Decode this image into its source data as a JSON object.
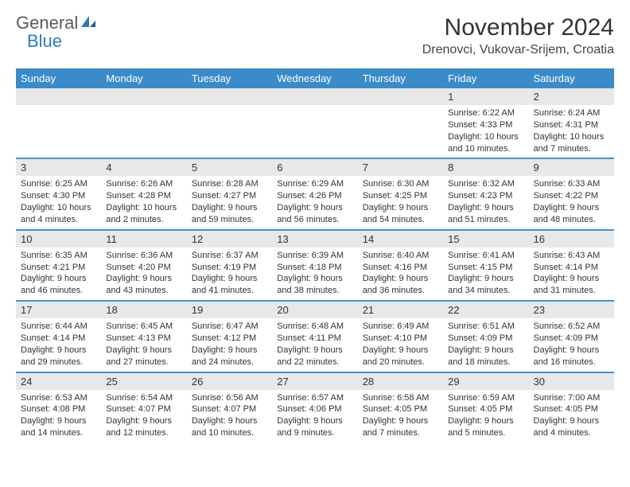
{
  "brand": {
    "word1": "General",
    "word2": "Blue"
  },
  "title": "November 2024",
  "location": "Drenovci, Vukovar-Srijem, Croatia",
  "colors": {
    "header_bg": "#3b8bc9",
    "header_text": "#ffffff",
    "daynum_bg": "#e8e8e8",
    "row_border": "#4a90c8",
    "body_text": "#333333",
    "logo_grey": "#5a5a5a",
    "logo_blue": "#2b7bbf"
  },
  "daysOfWeek": [
    "Sunday",
    "Monday",
    "Tuesday",
    "Wednesday",
    "Thursday",
    "Friday",
    "Saturday"
  ],
  "grid": [
    [
      null,
      null,
      null,
      null,
      null,
      {
        "n": "1",
        "sunrise": "Sunrise: 6:22 AM",
        "sunset": "Sunset: 4:33 PM",
        "daylight": "Daylight: 10 hours and 10 minutes."
      },
      {
        "n": "2",
        "sunrise": "Sunrise: 6:24 AM",
        "sunset": "Sunset: 4:31 PM",
        "daylight": "Daylight: 10 hours and 7 minutes."
      }
    ],
    [
      {
        "n": "3",
        "sunrise": "Sunrise: 6:25 AM",
        "sunset": "Sunset: 4:30 PM",
        "daylight": "Daylight: 10 hours and 4 minutes."
      },
      {
        "n": "4",
        "sunrise": "Sunrise: 6:26 AM",
        "sunset": "Sunset: 4:28 PM",
        "daylight": "Daylight: 10 hours and 2 minutes."
      },
      {
        "n": "5",
        "sunrise": "Sunrise: 6:28 AM",
        "sunset": "Sunset: 4:27 PM",
        "daylight": "Daylight: 9 hours and 59 minutes."
      },
      {
        "n": "6",
        "sunrise": "Sunrise: 6:29 AM",
        "sunset": "Sunset: 4:26 PM",
        "daylight": "Daylight: 9 hours and 56 minutes."
      },
      {
        "n": "7",
        "sunrise": "Sunrise: 6:30 AM",
        "sunset": "Sunset: 4:25 PM",
        "daylight": "Daylight: 9 hours and 54 minutes."
      },
      {
        "n": "8",
        "sunrise": "Sunrise: 6:32 AM",
        "sunset": "Sunset: 4:23 PM",
        "daylight": "Daylight: 9 hours and 51 minutes."
      },
      {
        "n": "9",
        "sunrise": "Sunrise: 6:33 AM",
        "sunset": "Sunset: 4:22 PM",
        "daylight": "Daylight: 9 hours and 48 minutes."
      }
    ],
    [
      {
        "n": "10",
        "sunrise": "Sunrise: 6:35 AM",
        "sunset": "Sunset: 4:21 PM",
        "daylight": "Daylight: 9 hours and 46 minutes."
      },
      {
        "n": "11",
        "sunrise": "Sunrise: 6:36 AM",
        "sunset": "Sunset: 4:20 PM",
        "daylight": "Daylight: 9 hours and 43 minutes."
      },
      {
        "n": "12",
        "sunrise": "Sunrise: 6:37 AM",
        "sunset": "Sunset: 4:19 PM",
        "daylight": "Daylight: 9 hours and 41 minutes."
      },
      {
        "n": "13",
        "sunrise": "Sunrise: 6:39 AM",
        "sunset": "Sunset: 4:18 PM",
        "daylight": "Daylight: 9 hours and 38 minutes."
      },
      {
        "n": "14",
        "sunrise": "Sunrise: 6:40 AM",
        "sunset": "Sunset: 4:16 PM",
        "daylight": "Daylight: 9 hours and 36 minutes."
      },
      {
        "n": "15",
        "sunrise": "Sunrise: 6:41 AM",
        "sunset": "Sunset: 4:15 PM",
        "daylight": "Daylight: 9 hours and 34 minutes."
      },
      {
        "n": "16",
        "sunrise": "Sunrise: 6:43 AM",
        "sunset": "Sunset: 4:14 PM",
        "daylight": "Daylight: 9 hours and 31 minutes."
      }
    ],
    [
      {
        "n": "17",
        "sunrise": "Sunrise: 6:44 AM",
        "sunset": "Sunset: 4:14 PM",
        "daylight": "Daylight: 9 hours and 29 minutes."
      },
      {
        "n": "18",
        "sunrise": "Sunrise: 6:45 AM",
        "sunset": "Sunset: 4:13 PM",
        "daylight": "Daylight: 9 hours and 27 minutes."
      },
      {
        "n": "19",
        "sunrise": "Sunrise: 6:47 AM",
        "sunset": "Sunset: 4:12 PM",
        "daylight": "Daylight: 9 hours and 24 minutes."
      },
      {
        "n": "20",
        "sunrise": "Sunrise: 6:48 AM",
        "sunset": "Sunset: 4:11 PM",
        "daylight": "Daylight: 9 hours and 22 minutes."
      },
      {
        "n": "21",
        "sunrise": "Sunrise: 6:49 AM",
        "sunset": "Sunset: 4:10 PM",
        "daylight": "Daylight: 9 hours and 20 minutes."
      },
      {
        "n": "22",
        "sunrise": "Sunrise: 6:51 AM",
        "sunset": "Sunset: 4:09 PM",
        "daylight": "Daylight: 9 hours and 18 minutes."
      },
      {
        "n": "23",
        "sunrise": "Sunrise: 6:52 AM",
        "sunset": "Sunset: 4:09 PM",
        "daylight": "Daylight: 9 hours and 16 minutes."
      }
    ],
    [
      {
        "n": "24",
        "sunrise": "Sunrise: 6:53 AM",
        "sunset": "Sunset: 4:08 PM",
        "daylight": "Daylight: 9 hours and 14 minutes."
      },
      {
        "n": "25",
        "sunrise": "Sunrise: 6:54 AM",
        "sunset": "Sunset: 4:07 PM",
        "daylight": "Daylight: 9 hours and 12 minutes."
      },
      {
        "n": "26",
        "sunrise": "Sunrise: 6:56 AM",
        "sunset": "Sunset: 4:07 PM",
        "daylight": "Daylight: 9 hours and 10 minutes."
      },
      {
        "n": "27",
        "sunrise": "Sunrise: 6:57 AM",
        "sunset": "Sunset: 4:06 PM",
        "daylight": "Daylight: 9 hours and 9 minutes."
      },
      {
        "n": "28",
        "sunrise": "Sunrise: 6:58 AM",
        "sunset": "Sunset: 4:05 PM",
        "daylight": "Daylight: 9 hours and 7 minutes."
      },
      {
        "n": "29",
        "sunrise": "Sunrise: 6:59 AM",
        "sunset": "Sunset: 4:05 PM",
        "daylight": "Daylight: 9 hours and 5 minutes."
      },
      {
        "n": "30",
        "sunrise": "Sunrise: 7:00 AM",
        "sunset": "Sunset: 4:05 PM",
        "daylight": "Daylight: 9 hours and 4 minutes."
      }
    ]
  ]
}
